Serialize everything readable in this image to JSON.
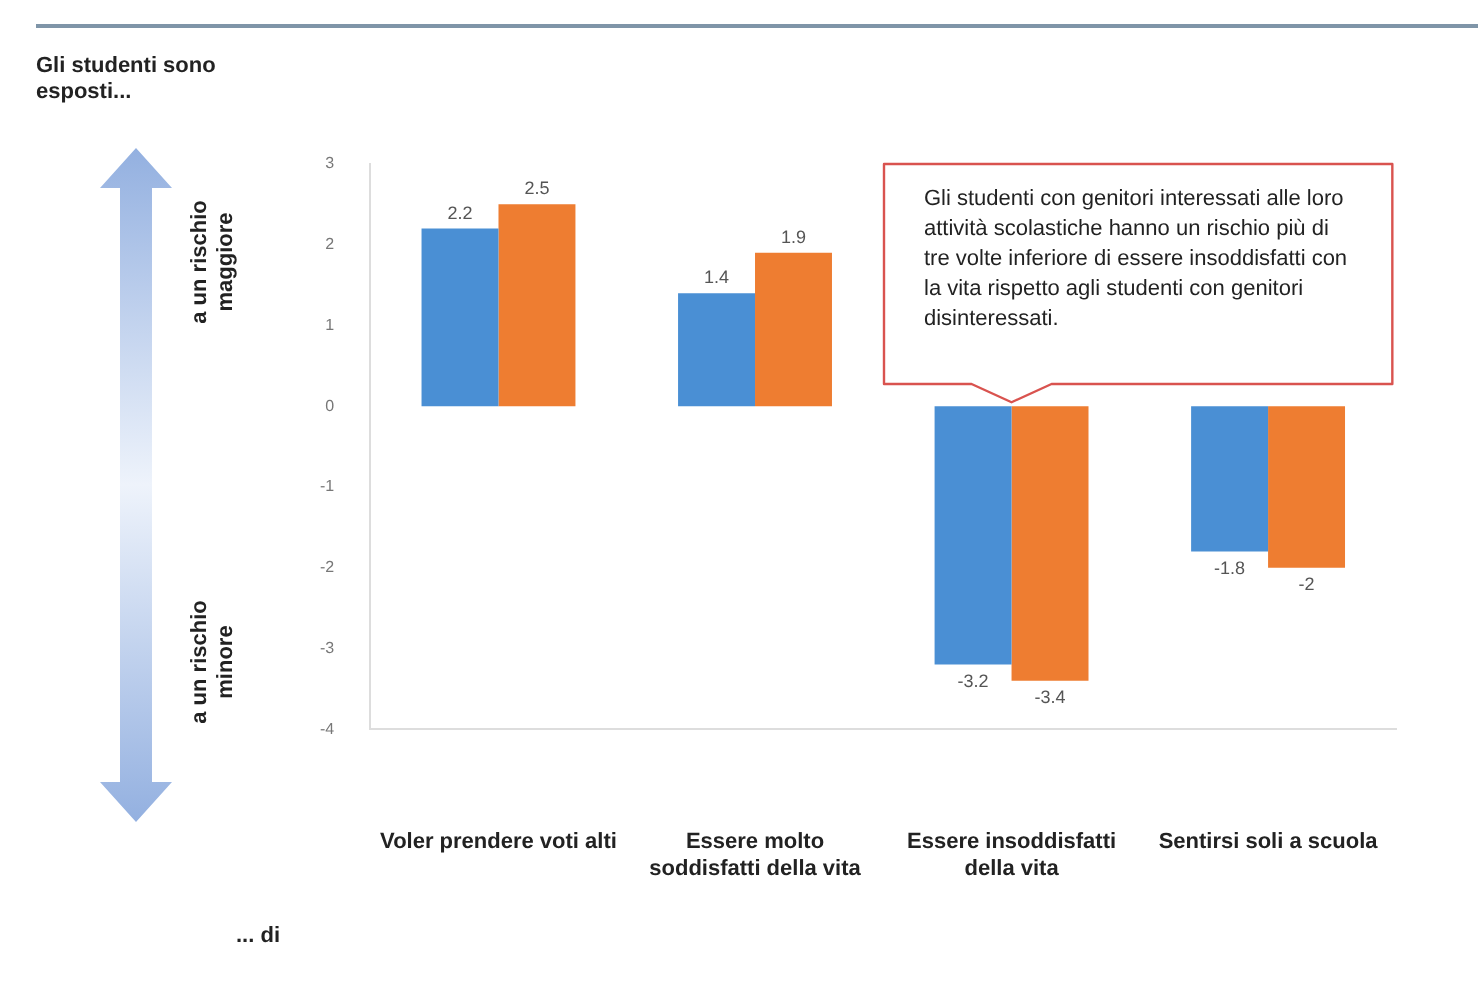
{
  "chart_data": {
    "type": "bar",
    "categories": [
      "Voler prendere voti alti",
      "Essere molto soddisfatti della vita",
      "Essere insoddisfatti della vita",
      "Sentirsi soli a scuola"
    ],
    "series": [
      {
        "color": "#4a8fd4",
        "values": [
          2.2,
          1.4,
          -3.2,
          -1.8
        ]
      },
      {
        "color": "#ee7d31",
        "values": [
          2.5,
          1.9,
          -3.4,
          -2
        ]
      }
    ],
    "ylim": [
      -4,
      3
    ],
    "yticks": [
      -4,
      -3,
      -2,
      -1,
      0,
      1,
      2,
      3
    ],
    "grid": false,
    "legend": false,
    "data_labels": true,
    "annotations": [
      "Gli studenti sono esposti...",
      "a un rischio maggiore",
      "a un rischio minore",
      "... di",
      "Gli studenti con genitori interessati alle loro attività scolastiche hanno un rischio più di tre volte inferiore di essere insoddisfatti con la vita rispetto agli studenti con genitori disinteressati."
    ]
  }
}
